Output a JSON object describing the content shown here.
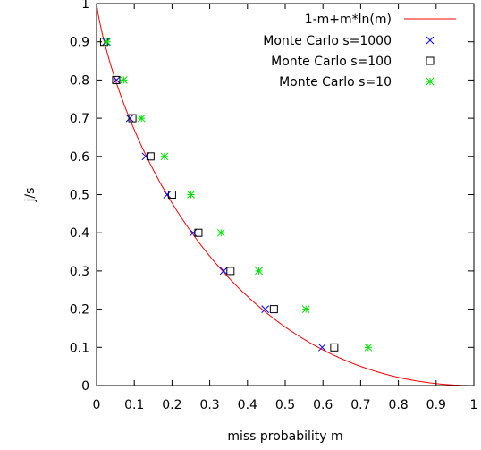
{
  "chart_data": {
    "type": "scatter",
    "title": "",
    "xlabel": "miss probability m",
    "ylabel": "j/s",
    "xlim": [
      0,
      1
    ],
    "ylim": [
      0,
      1
    ],
    "x_ticks": [
      "0",
      "0.1",
      "0.2",
      "0.3",
      "0.4",
      "0.5",
      "0.6",
      "0.7",
      "0.8",
      "0.9",
      "1"
    ],
    "y_ticks": [
      "0",
      "0.1",
      "0.2",
      "0.3",
      "0.4",
      "0.5",
      "0.6",
      "0.7",
      "0.8",
      "0.9",
      "1"
    ],
    "grid": false,
    "legend_position": "top-right",
    "series": [
      {
        "name": "1-m+m*ln(m)",
        "kind": "line",
        "color": "#ff0000",
        "formula": "1-m+m*ln(m)"
      },
      {
        "name": "Monte Carlo s=1000",
        "kind": "points",
        "marker": "x",
        "color": "#0000ff",
        "points": [
          [
            0.025,
            0.9
          ],
          [
            0.053,
            0.8
          ],
          [
            0.088,
            0.7
          ],
          [
            0.13,
            0.6
          ],
          [
            0.187,
            0.5
          ],
          [
            0.256,
            0.4
          ],
          [
            0.337,
            0.3
          ],
          [
            0.447,
            0.2
          ],
          [
            0.598,
            0.1
          ]
        ]
      },
      {
        "name": "Monte Carlo s=100",
        "kind": "points",
        "marker": "square",
        "color": "#000000",
        "points": [
          [
            0.02,
            0.9
          ],
          [
            0.052,
            0.8
          ],
          [
            0.095,
            0.7
          ],
          [
            0.143,
            0.6
          ],
          [
            0.2,
            0.5
          ],
          [
            0.27,
            0.4
          ],
          [
            0.355,
            0.3
          ],
          [
            0.47,
            0.2
          ],
          [
            0.63,
            0.1
          ]
        ]
      },
      {
        "name": "Monte Carlo s=10",
        "kind": "points",
        "marker": "star",
        "color": "#00e000",
        "points": [
          [
            0.028,
            0.9
          ],
          [
            0.072,
            0.8
          ],
          [
            0.119,
            0.7
          ],
          [
            0.18,
            0.6
          ],
          [
            0.25,
            0.5
          ],
          [
            0.33,
            0.4
          ],
          [
            0.43,
            0.3
          ],
          [
            0.555,
            0.2
          ],
          [
            0.72,
            0.1
          ]
        ]
      }
    ]
  }
}
